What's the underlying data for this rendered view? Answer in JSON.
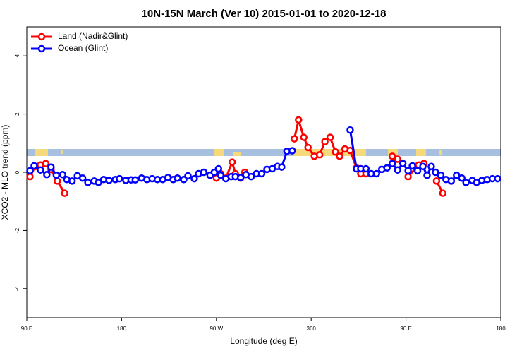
{
  "chart_data": {
    "type": "line",
    "title": "10N-15N March (Ver 10)   2015-01-01 to 2020-12-18",
    "x_label": "Longitude (deg E)",
    "y_label": "XCO2 - MLO trend (ppm)",
    "xlim": [
      90,
      540
    ],
    "ylim": [
      -5,
      5
    ],
    "xticks": [
      {
        "value": 90,
        "label": "90 E"
      },
      180,
      {
        "value": 270,
        "label": "90 W"
      },
      360,
      {
        "value": 450,
        "label": "90 E"
      },
      {
        "value": 540,
        "label": "180"
      }
    ],
    "yticks": [
      4,
      2,
      0,
      -2,
      -4
    ],
    "grid": false,
    "legend": "top-left",
    "series": [
      {
        "name": "Land (Nadir&Glint)",
        "color": "#ff0000",
        "x": [
          93,
          98,
          103,
          108,
          113,
          119,
          126,
          null,
          270,
          274,
          279,
          285,
          288,
          293,
          297,
          null,
          344,
          348,
          353,
          357,
          363,
          368,
          373,
          378,
          383,
          387,
          392,
          397,
          403,
          407,
          412,
          null,
          437,
          442,
          null,
          452,
          462,
          467,
          null,
          479,
          485
        ],
        "values": [
          -0.15,
          0.2,
          0.25,
          0.3,
          0.1,
          -0.3,
          -0.72,
          null,
          -0.2,
          -0.05,
          -0.2,
          0.35,
          -0.05,
          -0.2,
          0.0,
          null,
          1.15,
          1.8,
          1.2,
          0.85,
          0.55,
          0.6,
          1.05,
          1.2,
          0.7,
          0.55,
          0.8,
          0.75,
          0.15,
          -0.05,
          -0.05,
          null,
          0.55,
          0.45,
          null,
          -0.15,
          0.25,
          0.3,
          null,
          -0.3,
          -0.72
        ]
      },
      {
        "name": "Ocean (Glint)",
        "color": "#0000ff",
        "x": [
          93,
          97,
          103,
          109,
          113,
          118,
          124,
          128,
          133,
          138,
          143,
          148,
          154,
          158,
          163,
          168,
          174,
          178,
          184,
          189,
          193,
          199,
          204,
          209,
          214,
          219,
          224,
          229,
          233,
          239,
          243,
          249,
          253,
          258,
          264,
          268,
          272,
          274,
          279,
          284,
          288,
          293,
          298,
          303,
          308,
          313,
          318,
          323,
          328,
          332,
          337,
          342,
          null,
          397,
          403,
          407,
          412,
          417,
          422,
          427,
          432,
          437,
          442,
          447,
          452,
          456,
          461,
          466,
          470,
          474,
          478,
          483,
          488,
          493,
          498,
          503,
          507,
          513,
          517,
          522,
          527,
          532,
          537
        ],
        "values": [
          0.05,
          0.22,
          0.08,
          -0.08,
          0.18,
          -0.1,
          -0.08,
          -0.25,
          -0.3,
          -0.12,
          -0.2,
          -0.35,
          -0.3,
          -0.35,
          -0.25,
          -0.28,
          -0.25,
          -0.22,
          -0.28,
          -0.26,
          -0.26,
          -0.2,
          -0.25,
          -0.22,
          -0.25,
          -0.25,
          -0.18,
          -0.25,
          -0.2,
          -0.25,
          -0.12,
          -0.22,
          -0.05,
          0.0,
          -0.1,
          0.0,
          0.12,
          -0.1,
          -0.22,
          -0.15,
          -0.15,
          -0.18,
          -0.08,
          -0.15,
          -0.05,
          -0.05,
          0.1,
          0.12,
          0.2,
          0.18,
          0.72,
          0.74,
          null,
          1.45,
          0.12,
          0.12,
          0.12,
          -0.05,
          -0.05,
          0.1,
          0.15,
          0.3,
          0.08,
          0.3,
          0.05,
          0.22,
          0.05,
          0.2,
          -0.1,
          0.2,
          0.0,
          -0.1,
          -0.25,
          -0.3,
          -0.1,
          -0.2,
          -0.35,
          -0.28,
          -0.35,
          -0.28,
          -0.25,
          -0.22,
          -0.22
        ]
      }
    ]
  }
}
